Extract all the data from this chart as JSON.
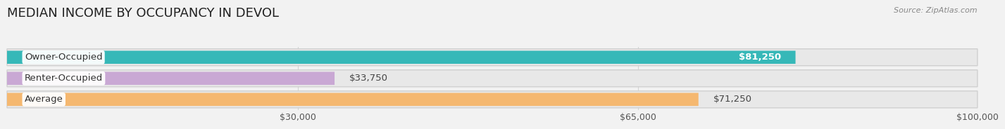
{
  "title": "MEDIAN INCOME BY OCCUPANCY IN DEVOL",
  "source": "Source: ZipAtlas.com",
  "categories": [
    "Owner-Occupied",
    "Renter-Occupied",
    "Average"
  ],
  "values": [
    81250,
    33750,
    71250
  ],
  "bar_colors": [
    "#36b8b8",
    "#c9a8d4",
    "#f5b870"
  ],
  "background_color": "#f2f2f2",
  "xlim": [
    0,
    100000
  ],
  "xticks": [
    30000,
    65000,
    100000
  ],
  "xtick_labels": [
    "$30,000",
    "$65,000",
    "$100,000"
  ],
  "value_labels": [
    "$81,250",
    "$33,750",
    "$71,250"
  ],
  "value_inside": [
    true,
    false,
    false
  ],
  "title_fontsize": 13,
  "label_fontsize": 9.5,
  "tick_fontsize": 9,
  "bar_height": 0.62,
  "row_bg_color": "#e8e8e8",
  "row_border_color": "#d0d0d0",
  "grid_color": "#d5d5d5"
}
